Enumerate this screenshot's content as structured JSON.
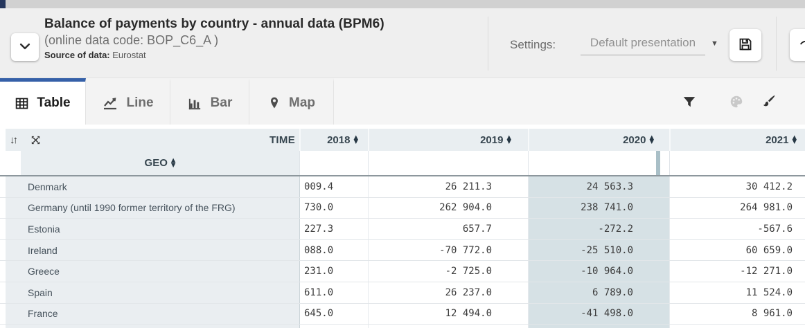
{
  "header": {
    "title": "Balance of payments by country - annual data (BPM6)",
    "subtitle": "(online data code: BOP_C6_A )",
    "source_label": "Source of data:",
    "source_value": "Eurostat",
    "settings_label": "Settings:",
    "settings_value": "Default presentation",
    "collapse_icon": "chevron-down-icon",
    "save_icon": "save-icon"
  },
  "tabs": [
    {
      "label": "Table",
      "icon": "table-icon",
      "active": true
    },
    {
      "label": "Line",
      "icon": "line-chart-icon",
      "active": false
    },
    {
      "label": "Bar",
      "icon": "bar-chart-icon",
      "active": false
    },
    {
      "label": "Map",
      "icon": "map-pin-icon",
      "active": false
    }
  ],
  "toolbar_icons": [
    "filter-icon",
    "palette-icon",
    "paintbrush-icon",
    "more-tools-icon"
  ],
  "table": {
    "time_label": "TIME",
    "geo_label": "GEO",
    "years": [
      "2018",
      "2019",
      "2020",
      "2021"
    ],
    "highlighted_year": "2020",
    "rows": [
      {
        "geo": "Denmark",
        "values": [
          "009.4",
          "26 211.3",
          "24 563.3",
          "30 412.2"
        ]
      },
      {
        "geo": "Germany (until 1990 former territory of the FRG)",
        "values": [
          "730.0",
          "262 904.0",
          "238 741.0",
          "264 981.0"
        ]
      },
      {
        "geo": "Estonia",
        "values": [
          "227.3",
          "657.7",
          "-272.2",
          "-567.6"
        ]
      },
      {
        "geo": "Ireland",
        "values": [
          "088.0",
          "-70 772.0",
          "-25 510.0",
          "60 659.0"
        ]
      },
      {
        "geo": "Greece",
        "values": [
          "231.0",
          "-2 725.0",
          "-10 964.0",
          "-12 271.0"
        ]
      },
      {
        "geo": "Spain",
        "values": [
          "611.0",
          "26 237.0",
          "6 789.0",
          "11 524.0"
        ]
      },
      {
        "geo": "France",
        "values": [
          "645.0",
          "12 494.0",
          "-41 498.0",
          "8 961.0"
        ]
      }
    ]
  },
  "colors": {
    "accent_blue": "#3560a8",
    "table_header_bg": "#e9eef1",
    "highlight_column": "#d6e1e5",
    "column_marker": "#a9bfc7"
  }
}
